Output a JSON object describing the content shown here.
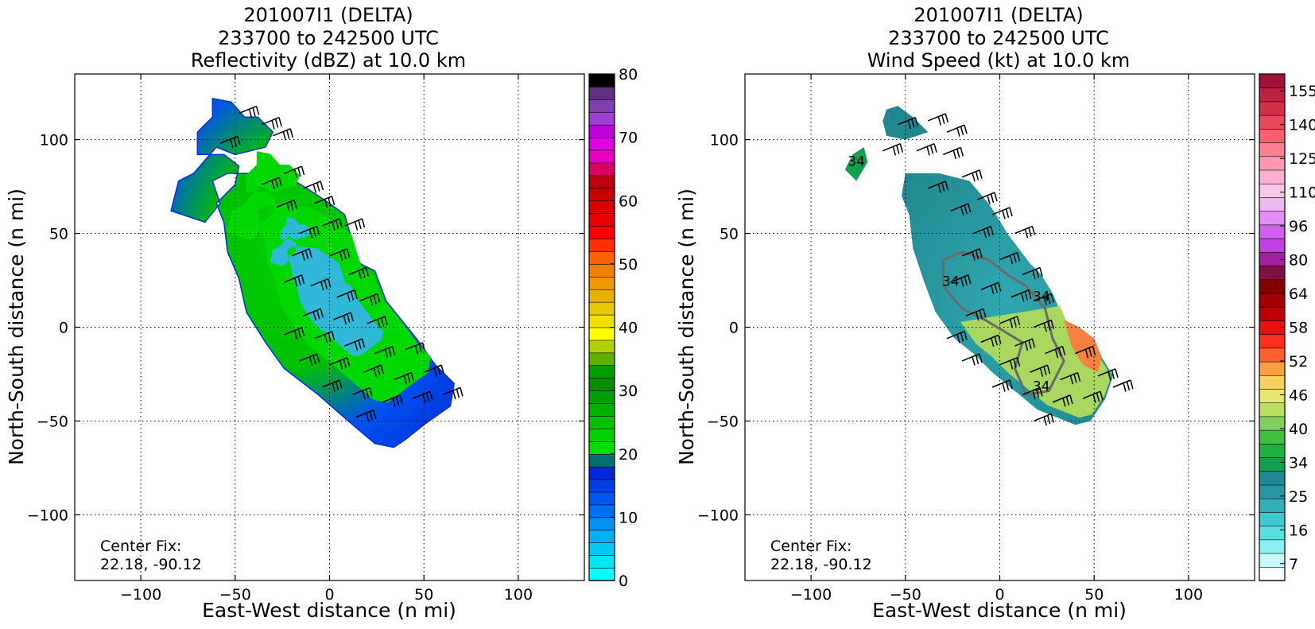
{
  "chart_data": [
    {
      "type": "heatmap",
      "title": "201007I1 (DELTA)",
      "subtitle_lines": [
        "233700 to 242500 UTC",
        "Reflectivity (dBZ) at 10.0 km"
      ],
      "xlabel": "East-West distance (n mi)",
      "ylabel": "North-South distance (n mi)",
      "xlim": [
        -135,
        135
      ],
      "ylim": [
        -135,
        135
      ],
      "x_ticks": [
        -100,
        -50,
        0,
        50,
        100
      ],
      "y_ticks": [
        100,
        50,
        0,
        -50,
        -100
      ],
      "x_tick_labels": [
        "−100",
        "−50",
        "0",
        "50",
        "100"
      ],
      "y_tick_labels": [
        "100",
        "50",
        "0",
        "−50",
        "−100"
      ],
      "grid": true,
      "annotation": {
        "line1": "Center Fix:",
        "line2": "22.18, -90.12"
      },
      "colorbar": {
        "vmin": 0,
        "vmax": 80,
        "tick_values": [
          0,
          10,
          20,
          30,
          40,
          50,
          60,
          70,
          80
        ],
        "tick_labels": [
          "0",
          "10",
          "20",
          "30",
          "40",
          "50",
          "60",
          "70",
          "80"
        ],
        "colors": [
          "#00ffff",
          "#00e5f2",
          "#00cbf2",
          "#00b0f2",
          "#0091f2",
          "#0070f2",
          "#0055f0",
          "#0040e8",
          "#0028d8",
          "#007070",
          "#00e000",
          "#00d000",
          "#00c000",
          "#00b000",
          "#00a000",
          "#009000",
          "#00a000",
          "#60b000",
          "#b0d000",
          "#ffff00",
          "#f0e000",
          "#e8c800",
          "#e8b000",
          "#f09800",
          "#f08000",
          "#ff6000",
          "#ff3000",
          "#ff0000",
          "#e80000",
          "#d80000",
          "#c80000",
          "#c00010",
          "#d80060",
          "#e800c0",
          "#e000e0",
          "#c000d8",
          "#a040d0",
          "#8040b0",
          "#603080",
          "#000000"
        ]
      },
      "field_style": "reflectivity",
      "echo_polygon_xy": [
        [
          -62,
          122
        ],
        [
          -52,
          120
        ],
        [
          -45,
          112
        ],
        [
          -38,
          112
        ],
        [
          -30,
          104
        ],
        [
          -34,
          96
        ],
        [
          -50,
          92
        ],
        [
          -60,
          96
        ],
        [
          -72,
          82
        ],
        [
          -80,
          78
        ],
        [
          -84,
          62
        ],
        [
          -66,
          56
        ],
        [
          -58,
          66
        ],
        [
          -62,
          78
        ],
        [
          -54,
          82
        ],
        [
          -40,
          82
        ],
        [
          -22,
          80
        ],
        [
          -12,
          74
        ],
        [
          0,
          66
        ],
        [
          8,
          60
        ],
        [
          12,
          46
        ],
        [
          16,
          34
        ],
        [
          24,
          30
        ],
        [
          30,
          14
        ],
        [
          38,
          4
        ],
        [
          46,
          -6
        ],
        [
          56,
          -20
        ],
        [
          66,
          -30
        ],
        [
          64,
          -42
        ],
        [
          50,
          -52
        ],
        [
          40,
          -60
        ],
        [
          34,
          -64
        ],
        [
          24,
          -62
        ],
        [
          10,
          -50
        ],
        [
          -6,
          -36
        ],
        [
          -24,
          -22
        ],
        [
          -34,
          -8
        ],
        [
          -44,
          8
        ],
        [
          -48,
          26
        ],
        [
          -54,
          40
        ],
        [
          -56,
          56
        ],
        [
          -60,
          66
        ],
        [
          -50,
          76
        ],
        [
          -48,
          86
        ],
        [
          -56,
          92
        ],
        [
          -70,
          92
        ],
        [
          -70,
          104
        ],
        [
          -62,
          112
        ]
      ],
      "wind_barbs_xy": [
        [
          -48,
          114
        ],
        [
          -36,
          108
        ],
        [
          -30,
          102
        ],
        [
          -58,
          98
        ],
        [
          -24,
          82
        ],
        [
          -36,
          76
        ],
        [
          -14,
          74
        ],
        [
          -28,
          64
        ],
        [
          -8,
          66
        ],
        [
          -4,
          54
        ],
        [
          -16,
          50
        ],
        [
          8,
          54
        ],
        [
          -20,
          38
        ],
        [
          0,
          38
        ],
        [
          10,
          28
        ],
        [
          -24,
          24
        ],
        [
          -10,
          22
        ],
        [
          4,
          16
        ],
        [
          16,
          14
        ],
        [
          -14,
          6
        ],
        [
          2,
          4
        ],
        [
          20,
          2
        ],
        [
          -24,
          -4
        ],
        [
          -8,
          -6
        ],
        [
          8,
          -10
        ],
        [
          24,
          -14
        ],
        [
          40,
          -12
        ],
        [
          -16,
          -18
        ],
        [
          0,
          -20
        ],
        [
          18,
          -24
        ],
        [
          34,
          -28
        ],
        [
          50,
          -24
        ],
        [
          -4,
          -32
        ],
        [
          12,
          -36
        ],
        [
          28,
          -40
        ],
        [
          44,
          -38
        ],
        [
          60,
          -36
        ],
        [
          14,
          -48
        ]
      ]
    },
    {
      "type": "heatmap",
      "title": "201007I1 (DELTA)",
      "subtitle_lines": [
        "233700 to 242500 UTC",
        "Wind Speed (kt) at 10.0 km"
      ],
      "xlabel": "East-West distance (n mi)",
      "ylabel": "North-South distance (n mi)",
      "xlim": [
        -135,
        135
      ],
      "ylim": [
        -135,
        135
      ],
      "x_ticks": [
        -100,
        -50,
        0,
        50,
        100
      ],
      "y_ticks": [
        100,
        50,
        0,
        -50,
        -100
      ],
      "x_tick_labels": [
        "−100",
        "−50",
        "0",
        "50",
        "100"
      ],
      "y_tick_labels": [
        "100",
        "50",
        "0",
        "−50",
        "−100"
      ],
      "grid": true,
      "annotation": {
        "line1": "Center Fix:",
        "line2": "22.18, -90.12"
      },
      "colorbar": {
        "vmin": 4,
        "vmax": 160,
        "tick_values": [
          7,
          16,
          25,
          34,
          40,
          46,
          52,
          58,
          64,
          80,
          96,
          110,
          125,
          140,
          155
        ],
        "tick_labels": [
          "7",
          "16",
          "25",
          "34",
          "40",
          "46",
          "52",
          "58",
          "64",
          "80",
          "96",
          "110",
          "125",
          "140",
          "155"
        ],
        "colors": [
          "#ffffff",
          "#c8fafa",
          "#8cf0f0",
          "#5ae0e0",
          "#40c8d0",
          "#30b0b8",
          "#2898a0",
          "#208890",
          "#10a050",
          "#20b040",
          "#40c040",
          "#80d060",
          "#b8e060",
          "#e8e870",
          "#f8d060",
          "#f8a040",
          "#ff6030",
          "#ff3020",
          "#e81010",
          "#c00000",
          "#a00000",
          "#800000",
          "#801040",
          "#a020a0",
          "#c040e0",
          "#d060f0",
          "#e090f0",
          "#f0b8f0",
          "#f8c8e8",
          "#ffb0d0",
          "#ff98b0",
          "#ff8090",
          "#f86070",
          "#e84858",
          "#d03048",
          "#c02040",
          "#a01038"
        ]
      },
      "field_style": "windspeed",
      "echo_polygon_xy": [
        [
          -60,
          116
        ],
        [
          -54,
          118
        ],
        [
          -46,
          112
        ],
        [
          -38,
          104
        ],
        [
          -50,
          100
        ],
        [
          -60,
          102
        ],
        [
          -62,
          110
        ]
      ],
      "echo_polygon2_xy": [
        [
          -50,
          82
        ],
        [
          -32,
          82
        ],
        [
          -16,
          78
        ],
        [
          -6,
          66
        ],
        [
          -2,
          60
        ],
        [
          4,
          50
        ],
        [
          10,
          42
        ],
        [
          16,
          34
        ],
        [
          22,
          28
        ],
        [
          28,
          18
        ],
        [
          34,
          4
        ],
        [
          42,
          0
        ],
        [
          50,
          -6
        ],
        [
          54,
          -16
        ],
        [
          60,
          -26
        ],
        [
          56,
          -38
        ],
        [
          48,
          -50
        ],
        [
          40,
          -52
        ],
        [
          30,
          -48
        ],
        [
          20,
          -44
        ],
        [
          8,
          -34
        ],
        [
          -4,
          -24
        ],
        [
          -14,
          -14
        ],
        [
          -24,
          -6
        ],
        [
          -34,
          8
        ],
        [
          -40,
          24
        ],
        [
          -46,
          42
        ],
        [
          -48,
          60
        ],
        [
          -52,
          70
        ]
      ],
      "echo_polygon3_xy": [
        [
          -78,
          92
        ],
        [
          -72,
          96
        ],
        [
          -70,
          88
        ],
        [
          -76,
          78
        ],
        [
          -82,
          84
        ]
      ],
      "contour_labels": [
        {
          "text": "34",
          "x": -76,
          "y": 86
        },
        {
          "text": "34",
          "x": -26,
          "y": 22
        },
        {
          "text": "34",
          "x": 22,
          "y": 14
        },
        {
          "text": "34",
          "x": 22,
          "y": -34
        }
      ],
      "wind_barbs_xy": [
        [
          -54,
          108
        ],
        [
          -38,
          110
        ],
        [
          -28,
          104
        ],
        [
          -62,
          94
        ],
        [
          -44,
          94
        ],
        [
          -30,
          92
        ],
        [
          -20,
          80
        ],
        [
          -38,
          74
        ],
        [
          -12,
          68
        ],
        [
          -26,
          62
        ],
        [
          -4,
          60
        ],
        [
          -14,
          50
        ],
        [
          8,
          50
        ],
        [
          -20,
          38
        ],
        [
          0,
          36
        ],
        [
          12,
          28
        ],
        [
          -26,
          24
        ],
        [
          -10,
          20
        ],
        [
          6,
          16
        ],
        [
          18,
          14
        ],
        [
          -18,
          6
        ],
        [
          0,
          2
        ],
        [
          18,
          0
        ],
        [
          -28,
          -6
        ],
        [
          -10,
          -8
        ],
        [
          8,
          -10
        ],
        [
          24,
          -14
        ],
        [
          40,
          -14
        ],
        [
          -20,
          -18
        ],
        [
          0,
          -20
        ],
        [
          16,
          -24
        ],
        [
          32,
          -28
        ],
        [
          52,
          -26
        ],
        [
          -4,
          -32
        ],
        [
          12,
          -36
        ],
        [
          28,
          -40
        ],
        [
          44,
          -38
        ],
        [
          60,
          -32
        ],
        [
          18,
          -50
        ]
      ]
    }
  ]
}
